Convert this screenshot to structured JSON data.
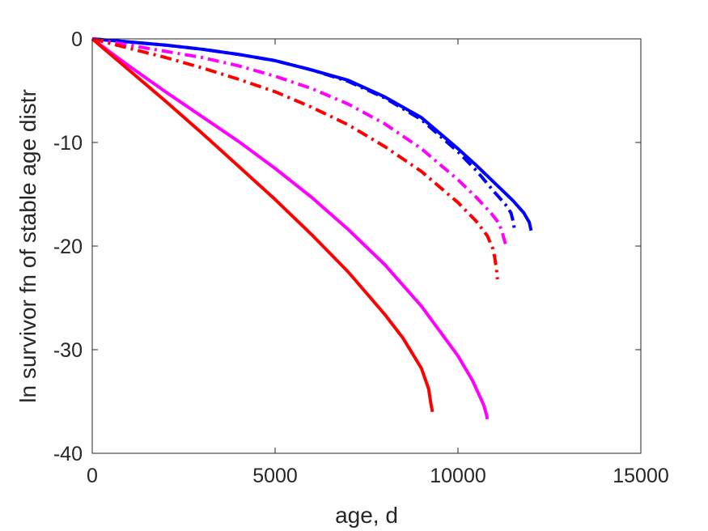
{
  "chart_data": {
    "type": "line",
    "title": "",
    "xlabel": "age, d",
    "ylabel": "ln survivor fn of stable age distr",
    "xlim": [
      0,
      15000
    ],
    "ylim": [
      -40,
      0
    ],
    "xticks": [
      "0",
      "5000",
      "10000",
      "15000"
    ],
    "yticks": [
      "0",
      "-10",
      "-20",
      "-30",
      "-40"
    ],
    "grid": false,
    "legend": "none",
    "series": [
      {
        "color": "#0000ff",
        "style": "solid",
        "x": [
          0,
          1000,
          2000,
          3000,
          4000,
          5000,
          6000,
          7000,
          8000,
          9000,
          10000,
          10500,
          11000,
          11500,
          11800,
          11950,
          12000
        ],
        "y": [
          0,
          -0.3,
          -0.6,
          -1.0,
          -1.5,
          -2.1,
          -3.0,
          -4.0,
          -5.6,
          -7.6,
          -10.6,
          -12.2,
          -13.9,
          -15.6,
          -16.8,
          -17.7,
          -18.5
        ]
      },
      {
        "color": "#0000ff",
        "style": "dashdot",
        "x": [
          0,
          1000,
          2000,
          3000,
          4000,
          5000,
          6000,
          7000,
          8000,
          9000,
          10000,
          10500,
          11000,
          11300,
          11450,
          11500,
          11550
        ],
        "y": [
          0,
          -0.3,
          -0.6,
          -1.0,
          -1.5,
          -2.1,
          -3.0,
          -4.1,
          -5.7,
          -7.8,
          -10.9,
          -12.7,
          -14.8,
          -16.0,
          -16.8,
          -17.5,
          -18.5
        ]
      },
      {
        "color": "#ff00ff",
        "style": "dashdot",
        "x": [
          0,
          1000,
          2000,
          3000,
          4000,
          5000,
          6000,
          7000,
          8000,
          9000,
          10000,
          10500,
          10900,
          11100,
          11200,
          11250,
          11300
        ],
        "y": [
          0,
          -0.6,
          -1.2,
          -1.8,
          -2.6,
          -3.6,
          -4.8,
          -6.3,
          -8.2,
          -10.6,
          -13.6,
          -15.3,
          -16.8,
          -17.7,
          -18.5,
          -19.2,
          -19.8
        ]
      },
      {
        "color": "#ff0000",
        "style": "dashdot",
        "x": [
          0,
          1000,
          2000,
          3000,
          4000,
          5000,
          6000,
          7000,
          8000,
          9000,
          10000,
          10500,
          10800,
          10950,
          11000,
          11050,
          11080
        ],
        "y": [
          0,
          -0.9,
          -1.8,
          -2.8,
          -3.9,
          -5.1,
          -6.6,
          -8.3,
          -10.4,
          -12.8,
          -15.8,
          -17.6,
          -19.0,
          -20.2,
          -21.0,
          -22.2,
          -23.2
        ]
      },
      {
        "color": "#ff00ff",
        "style": "solid",
        "x": [
          0,
          1000,
          2000,
          3000,
          4000,
          5000,
          6000,
          7000,
          8000,
          9000,
          10000,
          10400,
          10700,
          10750,
          10780,
          10800
        ],
        "y": [
          0,
          -2.6,
          -5.1,
          -7.5,
          -9.9,
          -12.5,
          -15.3,
          -18.4,
          -21.8,
          -25.8,
          -30.6,
          -33.0,
          -35.3,
          -35.9,
          -36.3,
          -36.7
        ]
      },
      {
        "color": "#ff0000",
        "style": "solid",
        "x": [
          0,
          1000,
          2000,
          3000,
          4000,
          5000,
          6000,
          7000,
          8000,
          8500,
          9000,
          9200,
          9250,
          9270,
          9300
        ],
        "y": [
          0,
          -3.0,
          -6.0,
          -9.1,
          -12.3,
          -15.5,
          -18.9,
          -22.5,
          -26.6,
          -28.9,
          -31.8,
          -33.8,
          -35.0,
          -35.4,
          -36.0
        ]
      }
    ]
  }
}
